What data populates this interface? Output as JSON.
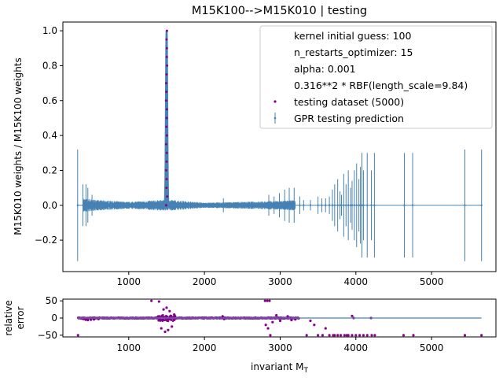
{
  "chart_data": [
    {
      "type": "scatter",
      "title": "M15K100-->M15K010 | testing",
      "xlabel": "",
      "ylabel": "M15K010 weights / M15K100 weights",
      "xlim": [
        130,
        5850
      ],
      "ylim": [
        -0.38,
        1.05
      ],
      "xticks": [
        1000,
        2000,
        3000,
        4000,
        5000
      ],
      "yticks": [
        -0.2,
        0.0,
        0.2,
        0.4,
        0.6,
        0.8,
        1.0
      ],
      "ytick_labels": [
        "−0.2",
        "0.0",
        "0.2",
        "0.4",
        "0.6",
        "0.8",
        "1.0"
      ],
      "legend_position": "top-right",
      "legend_text": [
        "kernel initial guess: 100",
        "n_restarts_optimizer: 15",
        "alpha: 0.001",
        "0.316**2 * RBF(length_scale=9.84)"
      ],
      "series": [
        {
          "name": "testing dataset (5000)",
          "marker": "dot",
          "color": "#8b008b",
          "peak": {
            "x": 1500,
            "y": 1.0
          },
          "peak_points": [
            [
              1500,
              0.0
            ],
            [
              1500,
              0.05
            ],
            [
              1500,
              0.1
            ],
            [
              1500,
              0.15
            ],
            [
              1500,
              0.2
            ],
            [
              1500,
              0.25
            ],
            [
              1500,
              0.3
            ],
            [
              1500,
              0.35
            ],
            [
              1500,
              0.4
            ],
            [
              1500,
              0.45
            ],
            [
              1500,
              0.5
            ],
            [
              1500,
              0.55
            ],
            [
              1500,
              0.6
            ],
            [
              1500,
              0.65
            ],
            [
              1500,
              0.7
            ],
            [
              1500,
              0.75
            ],
            [
              1500,
              0.8
            ],
            [
              1500,
              0.85
            ],
            [
              1500,
              0.9
            ],
            [
              1500,
              0.95
            ],
            [
              1500,
              1.0
            ]
          ]
        },
        {
          "name": "GPR testing prediction",
          "marker": "errorbar",
          "color": "#4682b4",
          "noise_band": [
            [
              400,
              0.04
            ],
            [
              600,
              0.03
            ],
            [
              1000,
              0.02
            ],
            [
              1400,
              0.03
            ],
            [
              1600,
              0.03
            ],
            [
              2000,
              0.015
            ],
            [
              2500,
              0.02
            ],
            [
              3000,
              0.025
            ],
            [
              3200,
              0.03
            ]
          ],
          "errorbars": [
            {
              "x": 325,
              "half": 0.32
            },
            {
              "x": 395,
              "half": 0.12
            },
            {
              "x": 435,
              "half": 0.12
            },
            {
              "x": 460,
              "half": 0.1
            },
            {
              "x": 515,
              "half": 0.06
            },
            {
              "x": 1450,
              "half": 0.02
            },
            {
              "x": 2250,
              "half": 0.04
            },
            {
              "x": 2850,
              "half": 0.06
            },
            {
              "x": 2920,
              "half": 0.05
            },
            {
              "x": 2990,
              "half": 0.07
            },
            {
              "x": 3060,
              "half": 0.09
            },
            {
              "x": 3120,
              "half": 0.1
            },
            {
              "x": 3185,
              "half": 0.1
            },
            {
              "x": 3260,
              "half": 0.05
            },
            {
              "x": 3310,
              "half": 0.03
            },
            {
              "x": 3400,
              "half": 0.03
            },
            {
              "x": 3500,
              "half": 0.05
            },
            {
              "x": 3550,
              "half": 0.04
            },
            {
              "x": 3600,
              "half": 0.04
            },
            {
              "x": 3650,
              "half": 0.05
            },
            {
              "x": 3690,
              "half": 0.09
            },
            {
              "x": 3720,
              "half": 0.12
            },
            {
              "x": 3760,
              "half": 0.15
            },
            {
              "x": 3790,
              "half": 0.08
            },
            {
              "x": 3810,
              "half": 0.06
            },
            {
              "x": 3840,
              "half": 0.18
            },
            {
              "x": 3870,
              "half": 0.12
            },
            {
              "x": 3900,
              "half": 0.2
            },
            {
              "x": 3930,
              "half": 0.1
            },
            {
              "x": 3950,
              "half": 0.14
            },
            {
              "x": 3980,
              "half": 0.2
            },
            {
              "x": 4010,
              "half": 0.24
            },
            {
              "x": 4040,
              "half": 0.15
            },
            {
              "x": 4060,
              "half": 0.22
            },
            {
              "x": 4080,
              "half": 0.3
            },
            {
              "x": 4100,
              "half": 0.2
            },
            {
              "x": 4150,
              "half": 0.3
            },
            {
              "x": 4205,
              "half": 0.2
            },
            {
              "x": 4245,
              "half": 0.3
            },
            {
              "x": 4640,
              "half": 0.3
            },
            {
              "x": 4750,
              "half": 0.3
            },
            {
              "x": 5440,
              "half": 0.32
            },
            {
              "x": 5660,
              "half": 0.32
            }
          ]
        }
      ]
    },
    {
      "type": "scatter",
      "title": "",
      "xlabel": "invariant M_T",
      "xlabel_main": "invariant M",
      "xlabel_sub": "T",
      "ylabel": "relative error",
      "ylabel_lines": [
        "relative",
        "error"
      ],
      "xlim": [
        130,
        5850
      ],
      "ylim": [
        -55,
        55
      ],
      "xticks": [
        1000,
        2000,
        3000,
        4000,
        5000
      ],
      "yticks": [
        -50,
        0,
        50
      ],
      "ytick_labels": [
        "−50",
        "0",
        "50"
      ],
      "series": [
        {
          "name": "relative error",
          "color": "#8b008b",
          "points": [
            [
              330,
              -50
            ],
            [
              400,
              -3
            ],
            [
              430,
              -5
            ],
            [
              460,
              -6
            ],
            [
              500,
              -5
            ],
            [
              540,
              -4
            ],
            [
              600,
              -3
            ],
            [
              1300,
              50
            ],
            [
              1400,
              48
            ],
            [
              1430,
              -30
            ],
            [
              1460,
              25
            ],
            [
              1480,
              -40
            ],
            [
              1500,
              30
            ],
            [
              1520,
              -35
            ],
            [
              1540,
              20
            ],
            [
              1570,
              -25
            ],
            [
              1600,
              10
            ],
            [
              2240,
              5
            ],
            [
              2260,
              -3
            ],
            [
              2800,
              50
            ],
            [
              2830,
              50
            ],
            [
              2860,
              50
            ],
            [
              2810,
              -20
            ],
            [
              2840,
              -30
            ],
            [
              2870,
              -50
            ],
            [
              2900,
              -12
            ],
            [
              2950,
              8
            ],
            [
              3000,
              -8
            ],
            [
              3100,
              5
            ],
            [
              3150,
              -6
            ],
            [
              3200,
              -4
            ],
            [
              3350,
              -50
            ],
            [
              3400,
              -8
            ],
            [
              3450,
              -20
            ],
            [
              3500,
              -50
            ],
            [
              3560,
              -50
            ],
            [
              3600,
              -30
            ],
            [
              3650,
              -50
            ],
            [
              3700,
              -50
            ],
            [
              3720,
              -50
            ],
            [
              3760,
              -50
            ],
            [
              3800,
              -50
            ],
            [
              3850,
              -50
            ],
            [
              3880,
              -50
            ],
            [
              3900,
              -50
            ],
            [
              3950,
              -50
            ],
            [
              4000,
              -50
            ],
            [
              4050,
              -50
            ],
            [
              4100,
              -50
            ],
            [
              4150,
              -50
            ],
            [
              4210,
              -50
            ],
            [
              4250,
              -50
            ],
            [
              3950,
              6
            ],
            [
              3970,
              0
            ],
            [
              4200,
              0
            ],
            [
              4630,
              -50
            ],
            [
              4760,
              -50
            ],
            [
              5440,
              -50
            ],
            [
              5660,
              -50
            ]
          ],
          "prediction_line": [
            [
              325,
              0
            ],
            [
              5660,
              0
            ]
          ]
        }
      ]
    }
  ]
}
